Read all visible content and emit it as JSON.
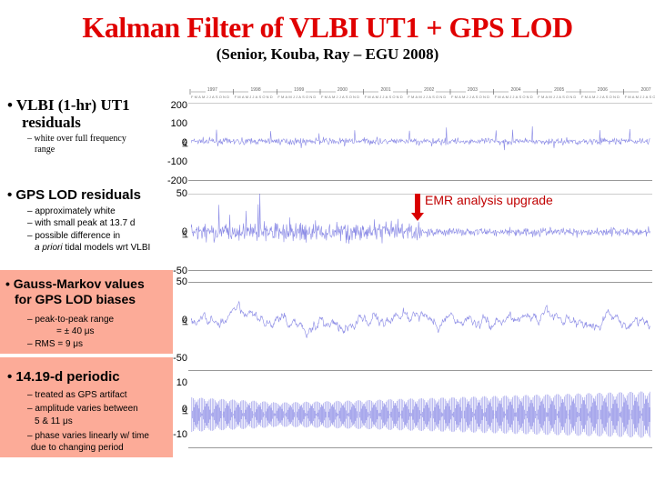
{
  "header": {
    "title": "Kalman Filter of VLBI UT1 + GPS LOD",
    "subtitle": "(Senior, Kouba, Ray – EGU 2008)"
  },
  "bullets": [
    {
      "heading_line1": "• VLBI (1-hr) UT1",
      "heading_line2": "residuals",
      "subs": [
        "– white over full frequency",
        "range"
      ]
    },
    {
      "heading": "• GPS LOD residuals",
      "subs": [
        "– approximately white",
        "– with small peak at 13.7 d",
        "– possible difference in"
      ],
      "sub_italic": "a priori",
      "sub_tail": " tidal models wrt VLBI"
    },
    {
      "heading_line1": "• Gauss-Markov values",
      "heading_line2": "for GPS LOD biases",
      "subs": [
        "– peak-to-peak range",
        "= ± 40 μs",
        "– RMS = 9 μs"
      ]
    },
    {
      "heading": "• 14.19-d periodic",
      "subs": [
        "– treated as GPS artifact",
        "– amplitude varies between",
        "5 & 11 μs",
        "– phase varies linearly w/ time",
        "due to changing period"
      ]
    }
  ],
  "annotation": {
    "label": "EMR analysis upgrade",
    "color": "#d90000"
  },
  "timeline": {
    "years": [
      "1997",
      "1998",
      "1999",
      "2000",
      "2001",
      "2002",
      "2003",
      "2004",
      "2005",
      "2006",
      "2007"
    ],
    "months": "FMAMJJASOND"
  },
  "colors": {
    "title": "#e00000",
    "box_bg": "#fcab98",
    "series": "#2828d0"
  },
  "chart_data": [
    {
      "type": "line",
      "title": "VLBI (1-hr) UT1 residuals",
      "ylabel": "μs",
      "ylim": [
        -200,
        200
      ],
      "yticks": [
        "200",
        "100",
        "0",
        "-100",
        "-200"
      ],
      "x": [
        "1997",
        "1998",
        "1999",
        "2000",
        "2001",
        "2002",
        "2003",
        "2004",
        "2005",
        "2006",
        "2007"
      ],
      "description": "white noise scatter around 0, mostly within ±50, occasional spikes to ~130 and ~-150"
    },
    {
      "type": "line",
      "title": "GPS LOD residuals",
      "ylabel": "μs",
      "ylim": [
        -50,
        50
      ],
      "yticks": [
        "50",
        "0",
        "-50"
      ],
      "annotation": "EMR analysis upgrade (~2002)",
      "description": "noise around 0, ~±20 before upgrade, ~±7 after"
    },
    {
      "type": "line",
      "title": "Gauss-Markov values for GPS LOD biases",
      "ylabel": "μs",
      "ylim": [
        -50,
        50
      ],
      "yticks": [
        "50",
        "0",
        "-50"
      ],
      "description": "random walk-like variation, peak-to-peak ±40, RMS 9"
    },
    {
      "type": "line",
      "title": "14.19-d periodic",
      "ylabel": "μs",
      "ylim": [
        -15,
        15
      ],
      "yticks": [
        "10",
        "0",
        "-10"
      ],
      "description": "dense oscillation, amplitude ~8 at start, ~5 near 1999-2000, rising to ~11 by 2007"
    }
  ]
}
